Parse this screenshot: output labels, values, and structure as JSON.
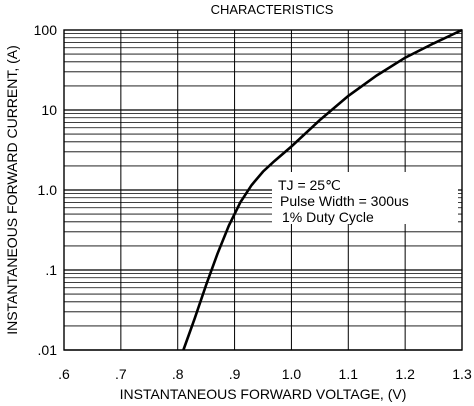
{
  "chart_data": {
    "type": "line",
    "title": "CHARACTERISTICS",
    "xlabel": "INSTANTANEOUS FORWARD VOLTAGE, (V)",
    "ylabel": "INSTANTANEOUS FORWARD CURRENT, (A)",
    "x_ticks": [
      ".6",
      ".7",
      ".8",
      ".9",
      "1.0",
      "1.1",
      "1.2",
      "1.3"
    ],
    "y_ticks": [
      ".01",
      ".1",
      "1.0",
      "10",
      "100"
    ],
    "xlim": [
      0.6,
      1.3
    ],
    "ylim": [
      0.01,
      100
    ],
    "y_scale": "log",
    "grid": true,
    "series": [
      {
        "x": [
          0.81,
          0.83,
          0.85,
          0.87,
          0.89,
          0.91,
          0.93,
          0.95,
          0.97,
          1.0,
          1.05,
          1.1,
          1.15,
          1.2,
          1.25,
          1.3
        ],
        "y": [
          0.01,
          0.025,
          0.065,
          0.16,
          0.36,
          0.7,
          1.15,
          1.7,
          2.3,
          3.5,
          7.5,
          15,
          27,
          45,
          68,
          100
        ]
      }
    ],
    "annotations": {
      "tj_label": "TJ = 25℃",
      "pulse": "Pulse Width = 300us",
      "duty": "1% Duty Cycle"
    }
  }
}
